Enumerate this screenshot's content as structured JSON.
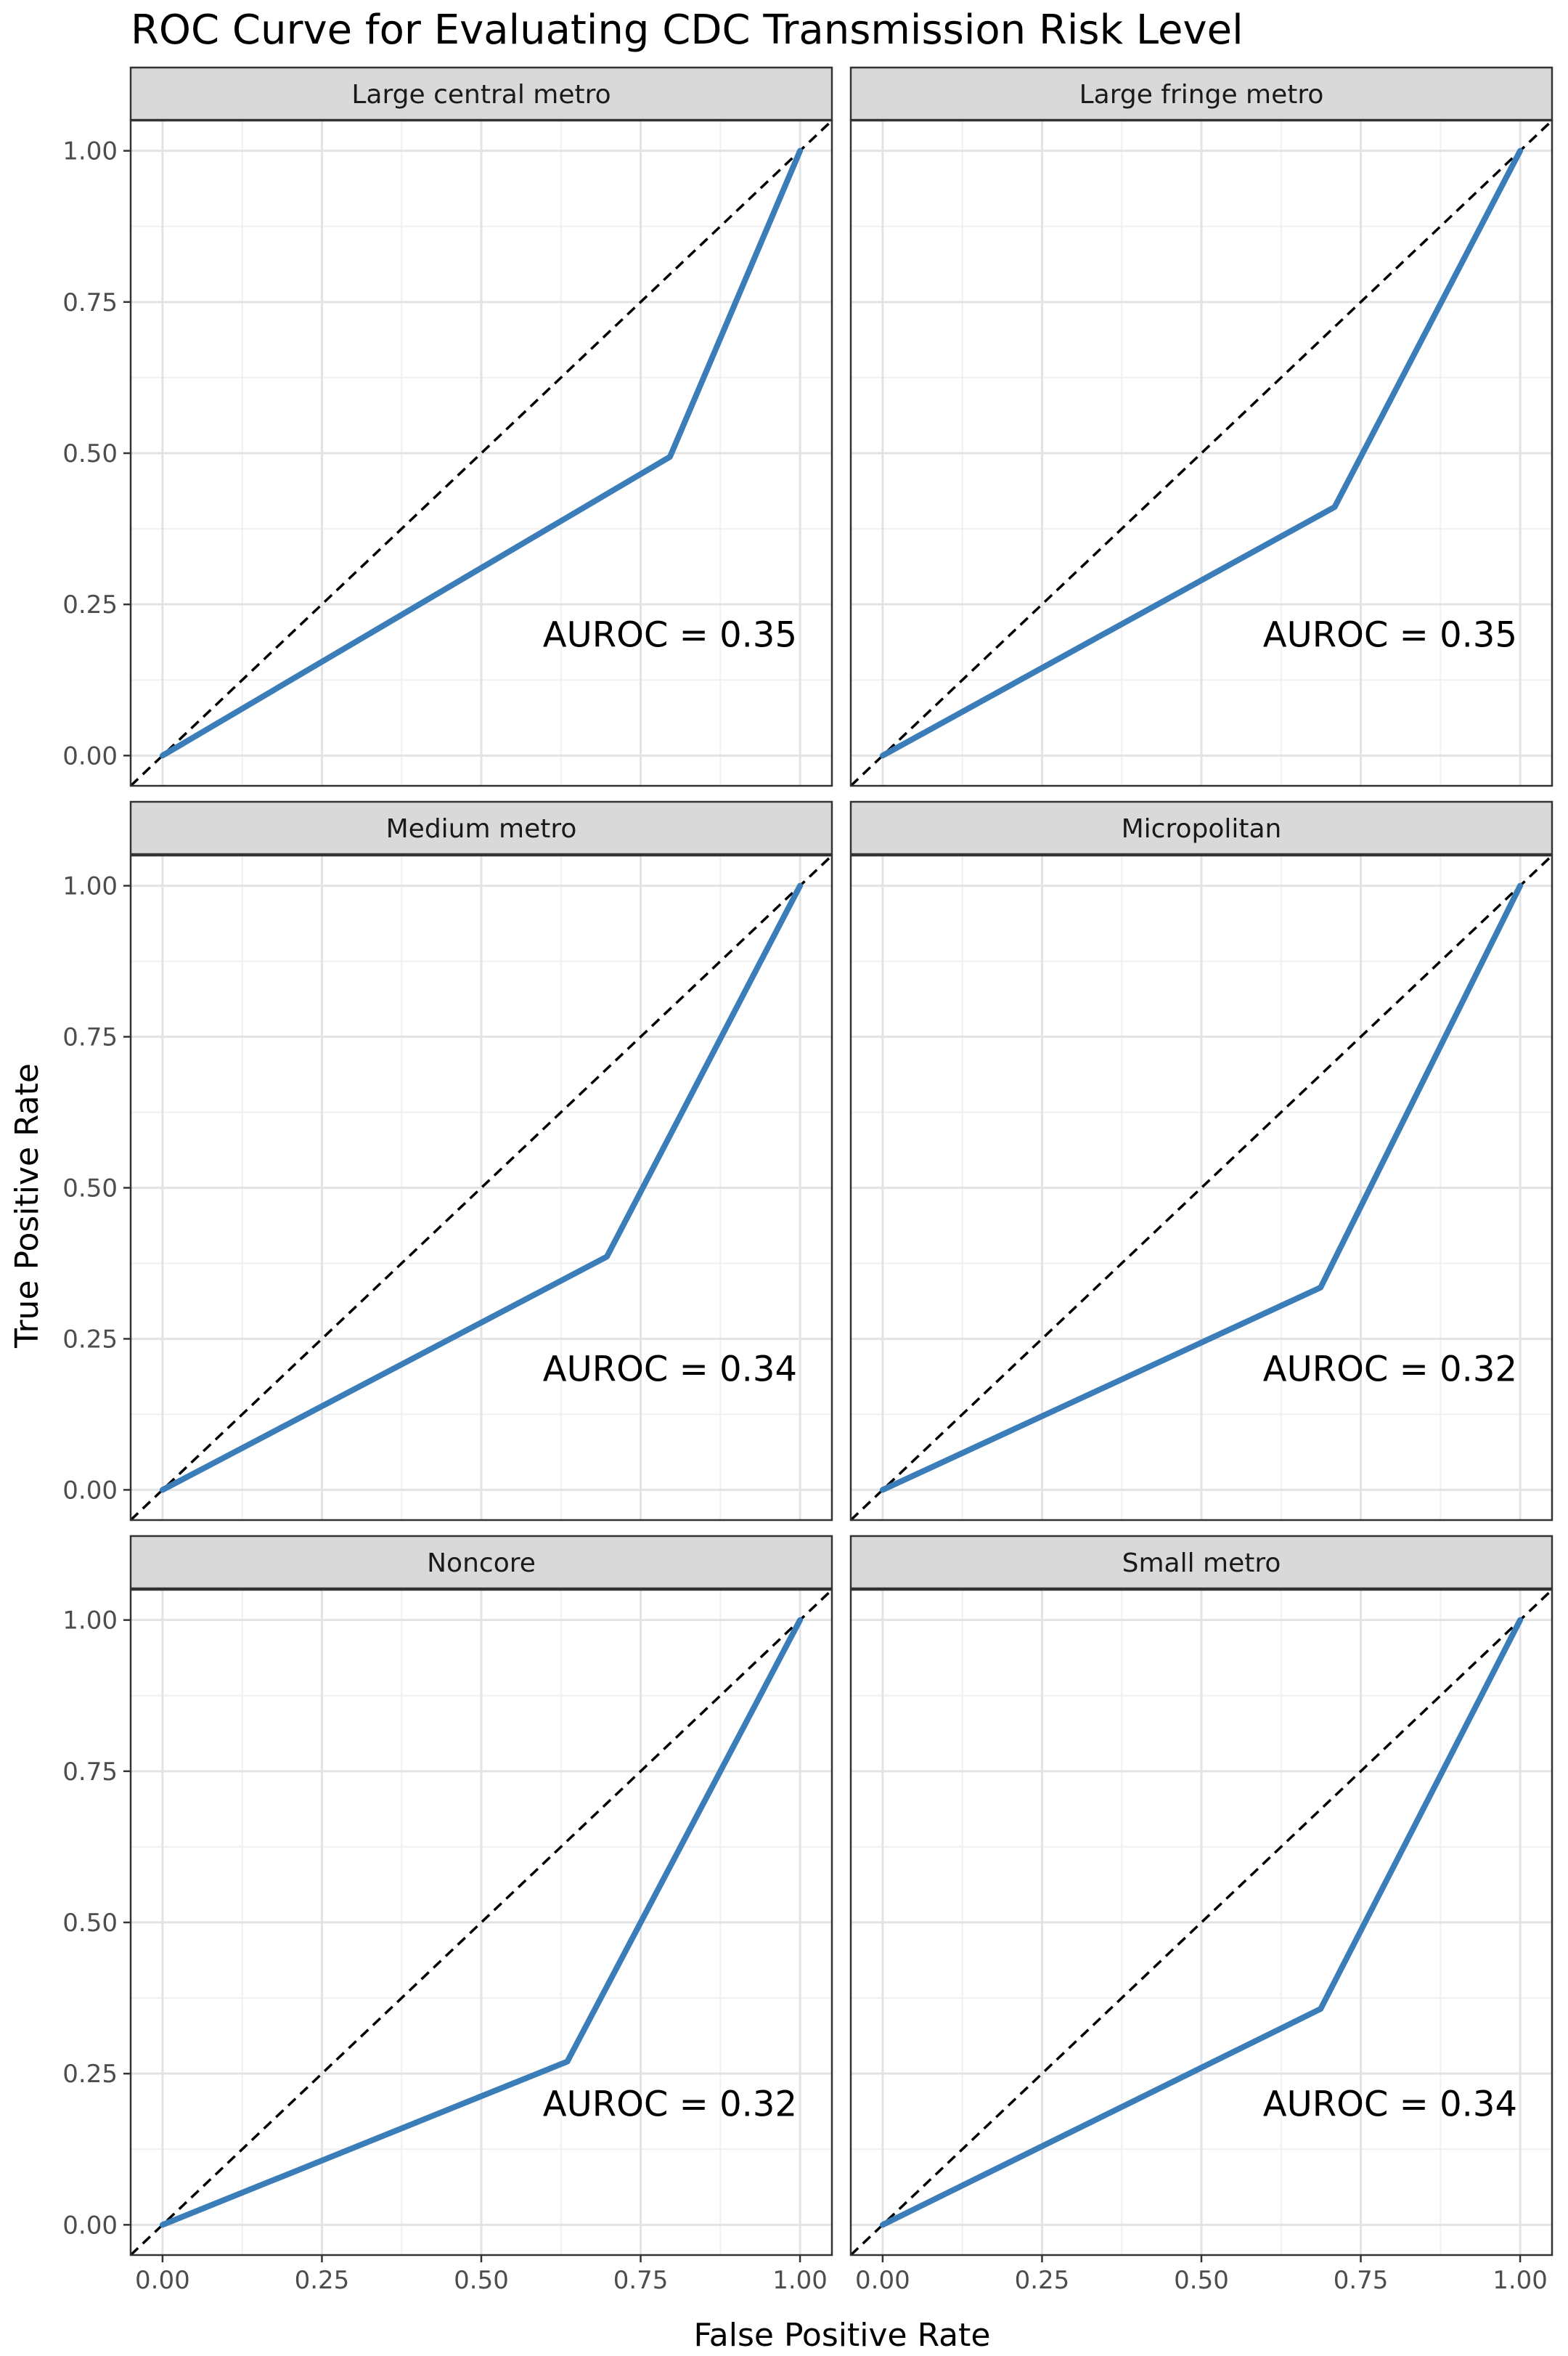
{
  "chart_data": {
    "type": "line",
    "title": "ROC Curve for Evaluating CDC Transmission Risk Level",
    "xlabel": "False Positive Rate",
    "ylabel": "True Positive Rate",
    "xlim": [
      -0.05,
      1.05
    ],
    "ylim": [
      -0.05,
      1.05
    ],
    "xticks": [
      0,
      0.25,
      0.5,
      0.75,
      1
    ],
    "yticks": [
      0,
      0.25,
      0.5,
      0.75,
      1
    ],
    "xtick_labels": [
      "0.00",
      "0.25",
      "0.50",
      "0.75",
      "1.00"
    ],
    "ytick_labels": [
      "0.00",
      "0.25",
      "0.50",
      "0.75",
      "1.00"
    ],
    "grid": true,
    "line_color": "#3a7db8",
    "reference_line": {
      "x": [
        0,
        1
      ],
      "y": [
        0,
        1
      ],
      "style": "dashed",
      "color": "#000000"
    },
    "panels": [
      {
        "label": "Large central metro",
        "x": [
          0,
          0.796,
          1
        ],
        "y": [
          0,
          0.494,
          1
        ],
        "annotation": "AUROC = 0.35"
      },
      {
        "label": "Large fringe metro",
        "x": [
          0,
          0.709,
          1
        ],
        "y": [
          0,
          0.411,
          1
        ],
        "annotation": "AUROC = 0.35"
      },
      {
        "label": "Medium metro",
        "x": [
          0,
          0.697,
          1
        ],
        "y": [
          0,
          0.386,
          1
        ],
        "annotation": "AUROC = 0.34"
      },
      {
        "label": "Micropolitan",
        "x": [
          0,
          0.687,
          1
        ],
        "y": [
          0,
          0.335,
          1
        ],
        "annotation": "AUROC = 0.32"
      },
      {
        "label": "Noncore",
        "x": [
          0,
          0.635,
          1
        ],
        "y": [
          0,
          0.27,
          1
        ],
        "annotation": "AUROC = 0.32"
      },
      {
        "label": "Small metro",
        "x": [
          0,
          0.687,
          1
        ],
        "y": [
          0,
          0.357,
          1
        ],
        "annotation": "AUROC = 0.34"
      }
    ]
  }
}
